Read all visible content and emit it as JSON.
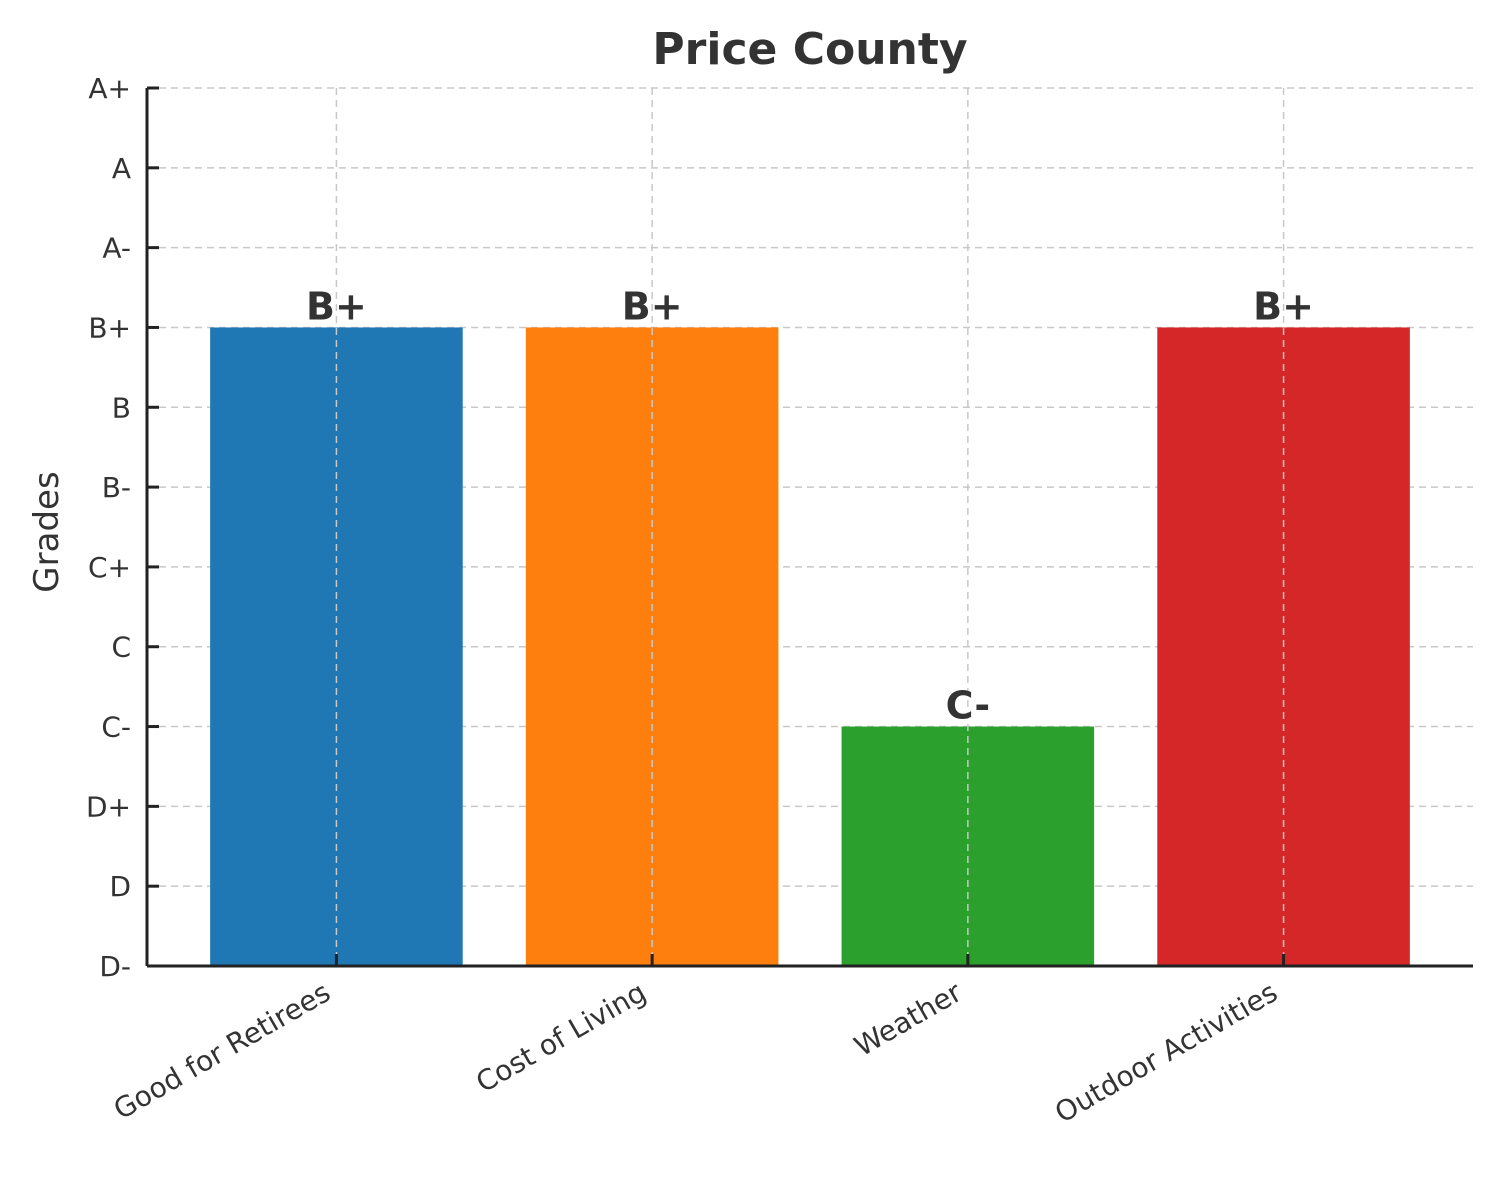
{
  "chart_data": {
    "type": "bar",
    "title": "Price County",
    "xlabel": "",
    "ylabel": "Grades",
    "grade_scale": [
      "D-",
      "D",
      "D+",
      "C-",
      "C",
      "C+",
      "B-",
      "B",
      "B+",
      "A-",
      "A",
      "A+"
    ],
    "categories": [
      "Good for Retirees",
      "Cost of Living",
      "Weather",
      "Outdoor Activities"
    ],
    "values": [
      "B+",
      "B+",
      "C-",
      "B+"
    ],
    "data_labels": [
      "B+",
      "B+",
      "C-",
      "B+"
    ],
    "colors": [
      "#1f77b4",
      "#ff7f0e",
      "#2ca02c",
      "#d62728"
    ],
    "ylim": [
      "D-",
      "A+"
    ],
    "grid": true,
    "legend": "none"
  }
}
